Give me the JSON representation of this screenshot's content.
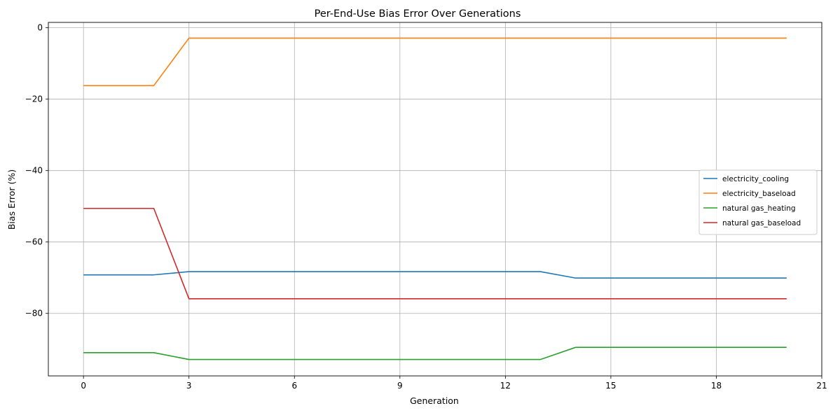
{
  "chart_data": {
    "type": "line",
    "title": "Per-End-Use Bias Error Over Generations",
    "xlabel": "Generation",
    "ylabel": "Bias Error (%)",
    "xlim": [
      -1,
      21
    ],
    "ylim": [
      -97.5,
      1.5
    ],
    "xticks": [
      0,
      3,
      6,
      9,
      12,
      15,
      18,
      21
    ],
    "yticks": [
      0,
      -20,
      -40,
      -60,
      -80
    ],
    "ytick_labels": [
      "0",
      "−20",
      "−40",
      "−60",
      "−80"
    ],
    "grid": true,
    "legend_position": "center-right",
    "x": [
      0,
      1,
      2,
      3,
      4,
      5,
      6,
      7,
      8,
      9,
      10,
      11,
      12,
      13,
      14,
      15,
      16,
      17,
      18,
      19,
      20
    ],
    "series": [
      {
        "name": "electricity_cooling",
        "color": "#1f77b4",
        "values": [
          -69.2,
          -69.2,
          -69.2,
          -68.3,
          -68.3,
          -68.3,
          -68.3,
          -68.3,
          -68.3,
          -68.3,
          -68.3,
          -68.3,
          -68.3,
          -68.3,
          -70.1,
          -70.1,
          -70.1,
          -70.1,
          -70.1,
          -70.1,
          -70.1
        ]
      },
      {
        "name": "electricity_baseload",
        "color": "#ff7f0e",
        "values": [
          -16.2,
          -16.2,
          -16.2,
          -2.9,
          -2.9,
          -2.9,
          -2.9,
          -2.9,
          -2.9,
          -2.9,
          -2.9,
          -2.9,
          -2.9,
          -2.9,
          -2.9,
          -2.9,
          -2.9,
          -2.9,
          -2.9,
          -2.9,
          -2.9
        ]
      },
      {
        "name": "natural gas_heating",
        "color": "#2ca02c",
        "values": [
          -91.0,
          -91.0,
          -91.0,
          -92.9,
          -92.9,
          -92.9,
          -92.9,
          -92.9,
          -92.9,
          -92.9,
          -92.9,
          -92.9,
          -92.9,
          -92.9,
          -89.5,
          -89.5,
          -89.5,
          -89.5,
          -89.5,
          -89.5,
          -89.5
        ]
      },
      {
        "name": "natural gas_baseload",
        "color": "#d62728",
        "values": [
          -50.6,
          -50.6,
          -50.6,
          -75.9,
          -75.9,
          -75.9,
          -75.9,
          -75.9,
          -75.9,
          -75.9,
          -75.9,
          -75.9,
          -75.9,
          -75.9,
          -75.9,
          -75.9,
          -75.9,
          -75.9,
          -75.9,
          -75.9,
          -75.9
        ]
      }
    ]
  }
}
